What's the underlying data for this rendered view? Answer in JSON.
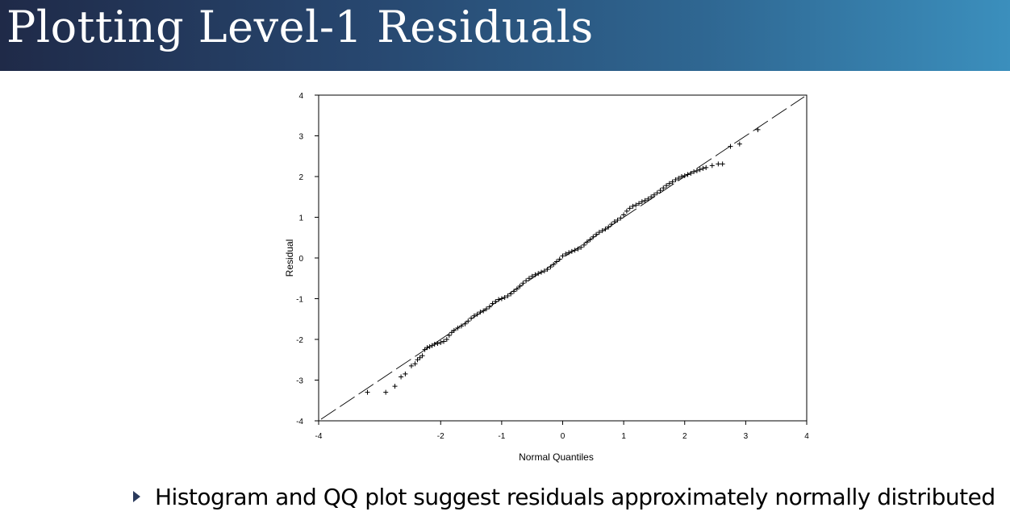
{
  "slide": {
    "title": "Plotting Level-1 Residuals",
    "bullet": "Histogram and QQ plot suggest residuals approximately normally distributed"
  },
  "colors": {
    "title_gradient": [
      "#1f2a48",
      "#3b8fbd"
    ],
    "title_text": "#ffffff",
    "bullet_arrow": "#2a3a5c"
  },
  "chart_data": {
    "type": "scatter",
    "subtype": "normal-qq",
    "xlabel": "Normal Quantiles",
    "ylabel": "Residual",
    "xlim": [
      -4,
      4
    ],
    "ylim": [
      -4,
      4
    ],
    "xticks": [
      "-4",
      "-2",
      "-1",
      "0",
      "1",
      "2",
      "3",
      "4"
    ],
    "yticks": [
      "4",
      "3",
      "2",
      "1",
      "0",
      "-1",
      "-2",
      "-3",
      "-4"
    ],
    "marker": "plus",
    "grid": false,
    "reference_line": {
      "style": "dashed",
      "from": [
        -4,
        -4
      ],
      "to": [
        4,
        4
      ]
    },
    "points": [
      [
        -3.2,
        -3.3
      ],
      [
        -2.9,
        -3.3
      ],
      [
        -2.75,
        -3.15
      ],
      [
        -2.65,
        -2.92
      ],
      [
        -2.58,
        -2.85
      ],
      [
        -2.48,
        -2.65
      ],
      [
        -2.42,
        -2.6
      ],
      [
        -2.38,
        -2.5
      ],
      [
        -2.34,
        -2.45
      ],
      [
        -2.3,
        -2.4
      ],
      [
        -2.26,
        -2.25
      ],
      [
        -2.22,
        -2.2
      ],
      [
        -2.18,
        -2.18
      ],
      [
        -2.14,
        -2.15
      ],
      [
        -2.1,
        -2.12
      ],
      [
        -2.05,
        -2.1
      ],
      [
        -2.0,
        -2.08
      ],
      [
        -1.95,
        -2.05
      ],
      [
        -1.9,
        -2.0
      ],
      [
        -1.86,
        -1.9
      ],
      [
        -1.82,
        -1.83
      ],
      [
        -1.78,
        -1.78
      ],
      [
        -1.72,
        -1.72
      ],
      [
        -1.66,
        -1.67
      ],
      [
        -1.6,
        -1.62
      ],
      [
        -1.55,
        -1.55
      ],
      [
        -1.5,
        -1.48
      ],
      [
        -1.45,
        -1.42
      ],
      [
        -1.4,
        -1.38
      ],
      [
        -1.35,
        -1.33
      ],
      [
        -1.3,
        -1.3
      ],
      [
        -1.25,
        -1.25
      ],
      [
        -1.2,
        -1.2
      ],
      [
        -1.15,
        -1.12
      ],
      [
        -1.1,
        -1.07
      ],
      [
        -1.05,
        -1.02
      ],
      [
        -1.0,
        -1.0
      ],
      [
        -0.95,
        -0.97
      ],
      [
        -0.9,
        -0.93
      ],
      [
        -0.85,
        -0.88
      ],
      [
        -0.8,
        -0.82
      ],
      [
        -0.75,
        -0.76
      ],
      [
        -0.7,
        -0.69
      ],
      [
        -0.65,
        -0.62
      ],
      [
        -0.6,
        -0.56
      ],
      [
        -0.55,
        -0.5
      ],
      [
        -0.5,
        -0.45
      ],
      [
        -0.45,
        -0.41
      ],
      [
        -0.4,
        -0.38
      ],
      [
        -0.35,
        -0.35
      ],
      [
        -0.3,
        -0.32
      ],
      [
        -0.25,
        -0.28
      ],
      [
        -0.2,
        -0.22
      ],
      [
        -0.15,
        -0.16
      ],
      [
        -0.1,
        -0.09
      ],
      [
        -0.05,
        -0.03
      ],
      [
        0.0,
        0.05
      ],
      [
        0.05,
        0.1
      ],
      [
        0.1,
        0.13
      ],
      [
        0.15,
        0.16
      ],
      [
        0.2,
        0.19
      ],
      [
        0.25,
        0.22
      ],
      [
        0.3,
        0.26
      ],
      [
        0.35,
        0.32
      ],
      [
        0.4,
        0.39
      ],
      [
        0.45,
        0.45
      ],
      [
        0.5,
        0.52
      ],
      [
        0.55,
        0.58
      ],
      [
        0.6,
        0.63
      ],
      [
        0.65,
        0.67
      ],
      [
        0.7,
        0.71
      ],
      [
        0.75,
        0.76
      ],
      [
        0.8,
        0.83
      ],
      [
        0.85,
        0.89
      ],
      [
        0.9,
        0.93
      ],
      [
        0.95,
        0.98
      ],
      [
        1.0,
        1.06
      ],
      [
        1.05,
        1.15
      ],
      [
        1.1,
        1.22
      ],
      [
        1.15,
        1.27
      ],
      [
        1.2,
        1.3
      ],
      [
        1.25,
        1.34
      ],
      [
        1.3,
        1.38
      ],
      [
        1.35,
        1.41
      ],
      [
        1.4,
        1.45
      ],
      [
        1.45,
        1.5
      ],
      [
        1.5,
        1.55
      ],
      [
        1.55,
        1.6
      ],
      [
        1.6,
        1.66
      ],
      [
        1.65,
        1.72
      ],
      [
        1.7,
        1.78
      ],
      [
        1.75,
        1.83
      ],
      [
        1.8,
        1.87
      ],
      [
        1.85,
        1.92
      ],
      [
        1.9,
        1.96
      ],
      [
        1.95,
        2.0
      ],
      [
        2.0,
        2.02
      ],
      [
        2.05,
        2.05
      ],
      [
        2.1,
        2.08
      ],
      [
        2.15,
        2.12
      ],
      [
        2.2,
        2.14
      ],
      [
        2.25,
        2.17
      ],
      [
        2.3,
        2.2
      ],
      [
        2.35,
        2.22
      ],
      [
        2.45,
        2.27
      ],
      [
        2.55,
        2.31
      ],
      [
        2.62,
        2.31
      ],
      [
        2.75,
        2.74
      ],
      [
        2.9,
        2.8
      ],
      [
        3.2,
        3.15
      ]
    ]
  }
}
